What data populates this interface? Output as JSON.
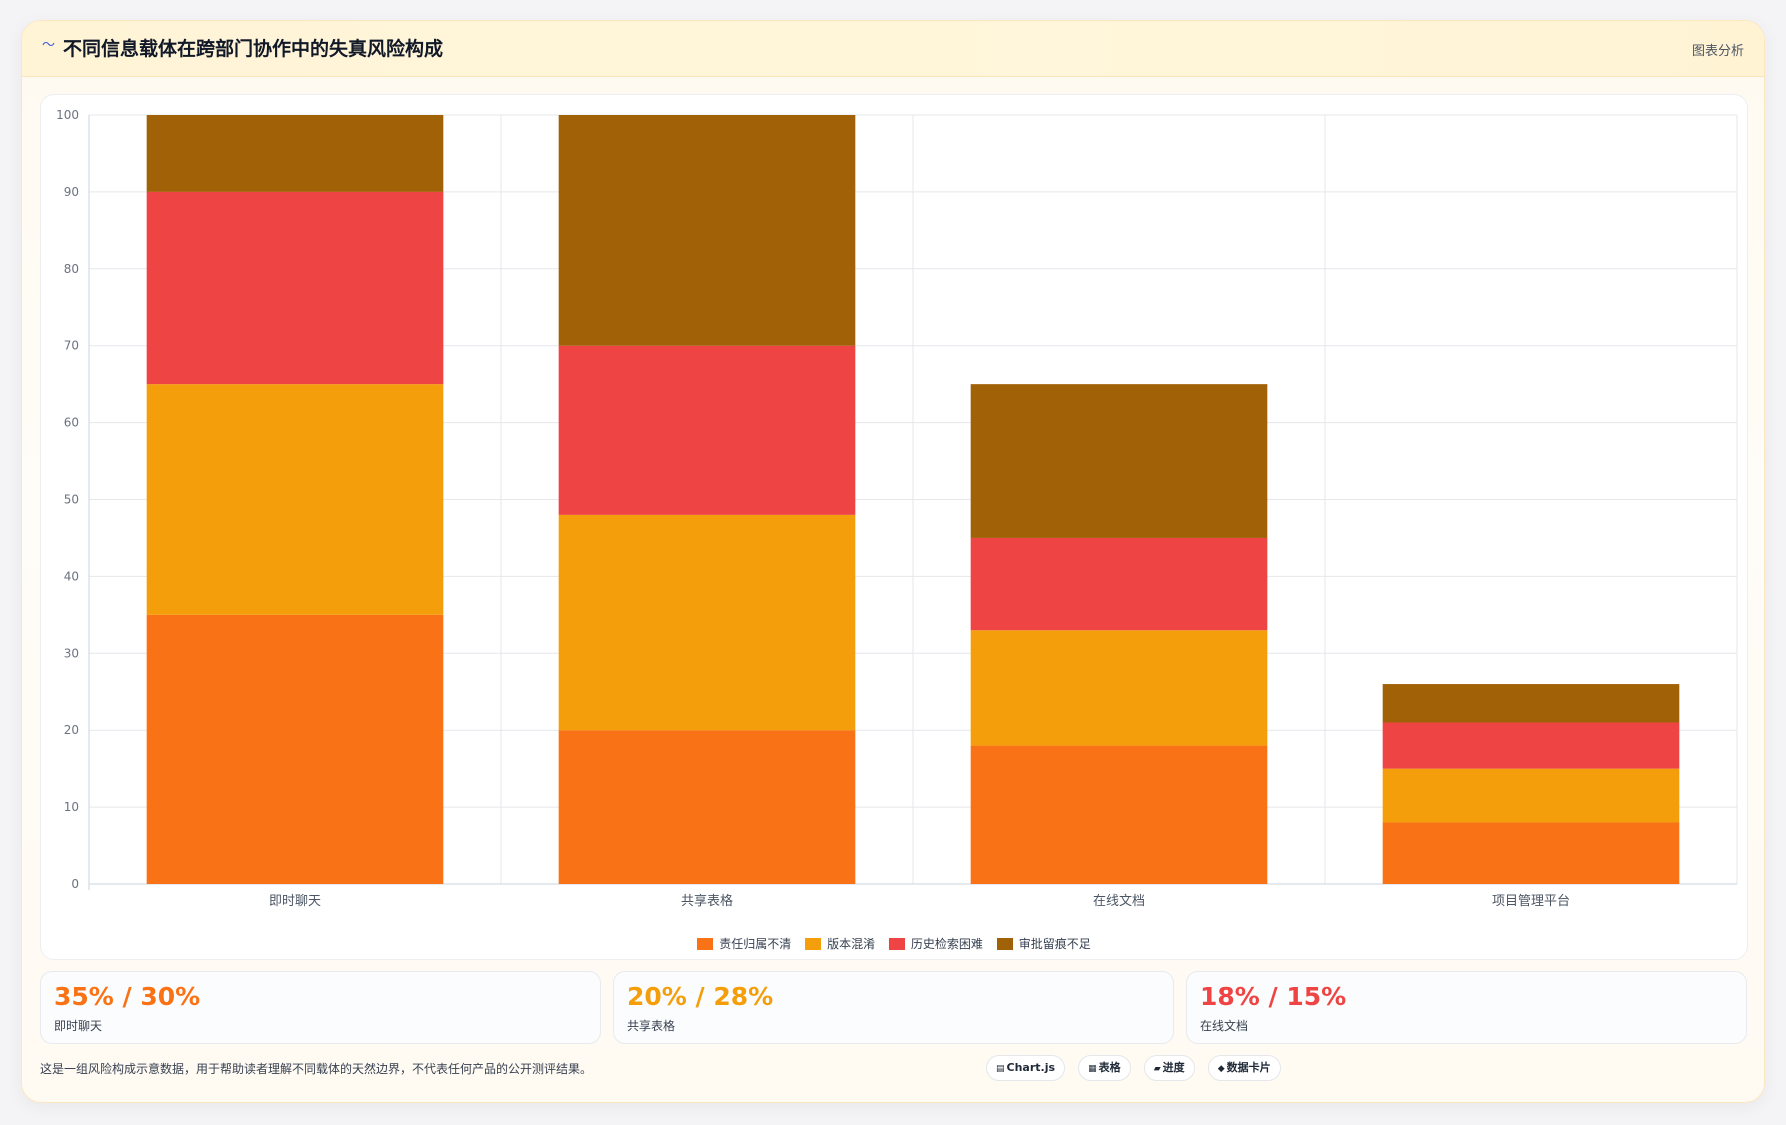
{
  "header": {
    "icon": "wave-icon",
    "title": "不同信息载体在跨部门协作中的失真风险构成",
    "tag": "图表分析"
  },
  "chart_data": {
    "type": "bar",
    "stacked": true,
    "categories": [
      "即时聊天",
      "共享表格",
      "在线文档",
      "项目管理平台"
    ],
    "series": [
      {
        "name": "责任归属不清",
        "color": "#f97316",
        "values": [
          35,
          20,
          18,
          8
        ]
      },
      {
        "name": "版本混淆",
        "color": "#f59e0b",
        "values": [
          30,
          28,
          15,
          7
        ]
      },
      {
        "name": "历史检索困难",
        "color": "#ef4444",
        "values": [
          25,
          22,
          12,
          6
        ]
      },
      {
        "name": "审批留痕不足",
        "color": "#a16207",
        "values": [
          10,
          30,
          20,
          5
        ]
      }
    ],
    "ylim": [
      0,
      100
    ],
    "yticks": [
      0,
      10,
      20,
      30,
      40,
      50,
      60,
      70,
      80,
      90,
      100
    ],
    "grid": true,
    "legend": "bottom"
  },
  "stats": [
    {
      "value": "35% / 30%",
      "label": "即时聊天",
      "color": "#f97316"
    },
    {
      "value": "20% / 28%",
      "label": "共享表格",
      "color": "#f59e0b"
    },
    {
      "value": "18% / 15%",
      "label": "在线文档",
      "color": "#ef4444"
    }
  ],
  "footer": {
    "note": "这是一组风险构成示意数据，用于帮助读者理解不同载体的天然边界，不代表任何产品的公开测评结果。",
    "chips": [
      {
        "icon": "chart-icon",
        "label": "Chart.js"
      },
      {
        "icon": "table-icon",
        "label": "表格"
      },
      {
        "icon": "progress-icon",
        "label": "进度"
      },
      {
        "icon": "data-card-icon",
        "label": "数据卡片"
      }
    ]
  }
}
